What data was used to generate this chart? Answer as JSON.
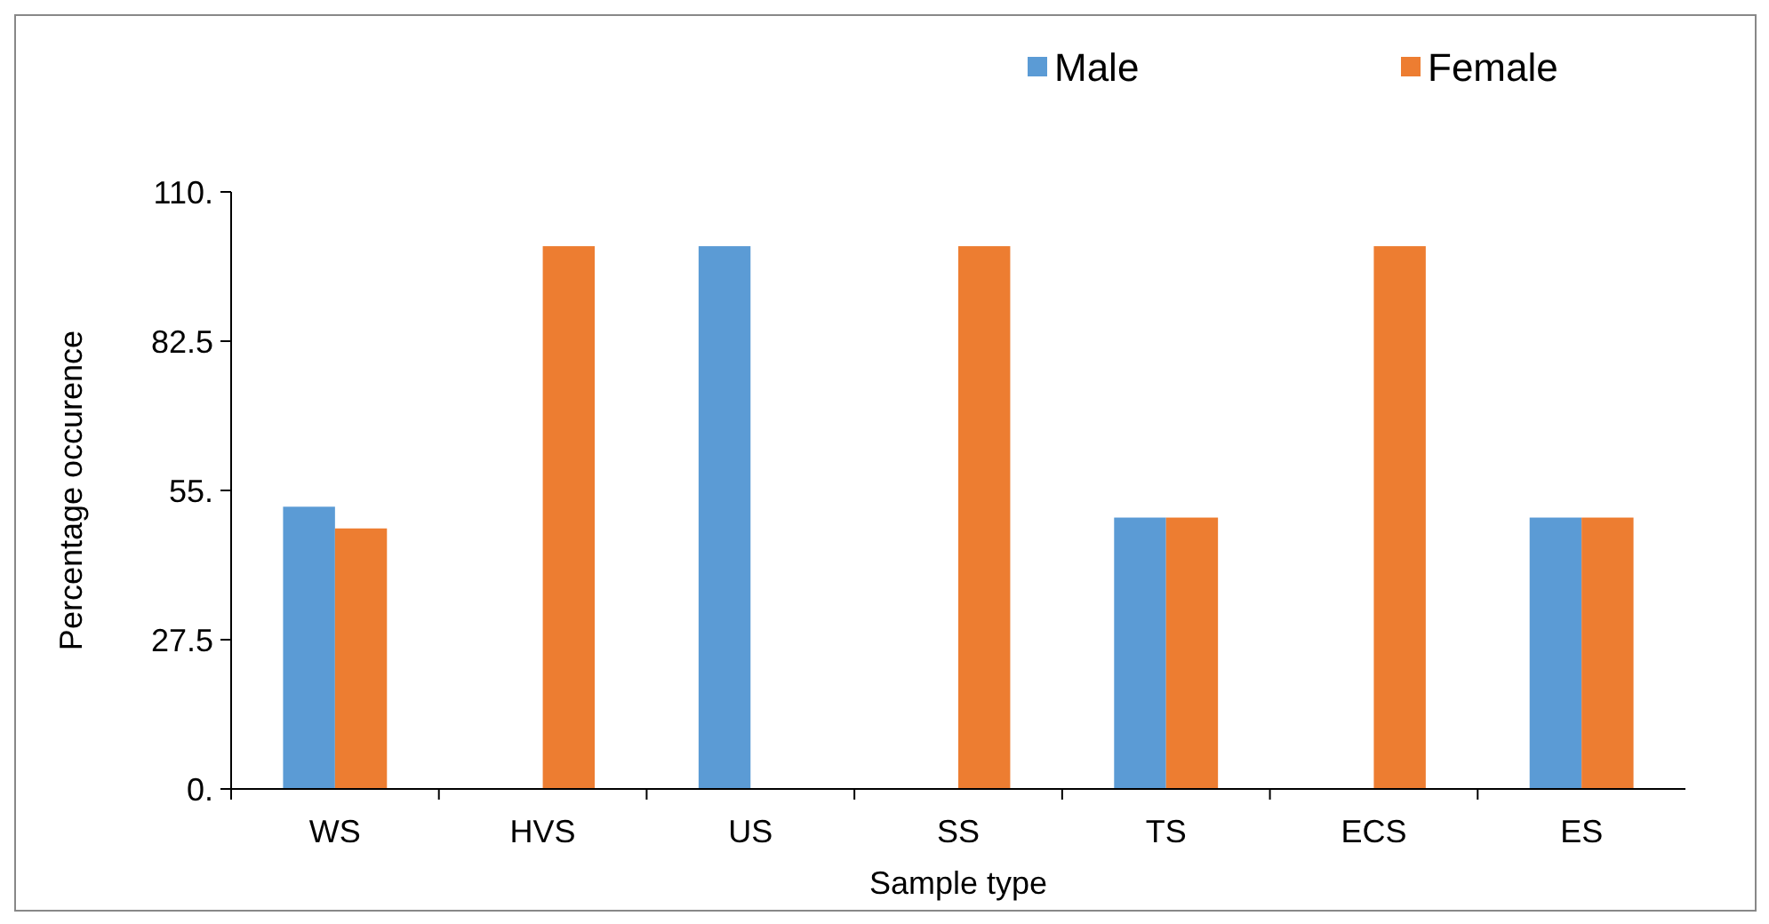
{
  "chart_data": {
    "type": "bar",
    "xlabel": "Sample type",
    "ylabel": "Percentage occurence",
    "categories": [
      "WS",
      "HVS",
      "US",
      "SS",
      "TS",
      "ECS",
      "ES"
    ],
    "series": [
      {
        "name": "Male",
        "color": "#5b9bd5",
        "values": [
          52,
          0,
          100,
          0,
          50,
          0,
          50
        ]
      },
      {
        "name": "Female",
        "color": "#ed7d31",
        "values": [
          48,
          100,
          0,
          100,
          50,
          100,
          50
        ]
      }
    ],
    "ylim": [
      0,
      110
    ],
    "yticks": [
      {
        "value": 0,
        "label": "0."
      },
      {
        "value": 27.5,
        "label": "27.5"
      },
      {
        "value": 55,
        "label": "55."
      },
      {
        "value": 82.5,
        "label": "82.5"
      },
      {
        "value": 110,
        "label": "110."
      }
    ],
    "grid": false,
    "legend": "top right"
  }
}
